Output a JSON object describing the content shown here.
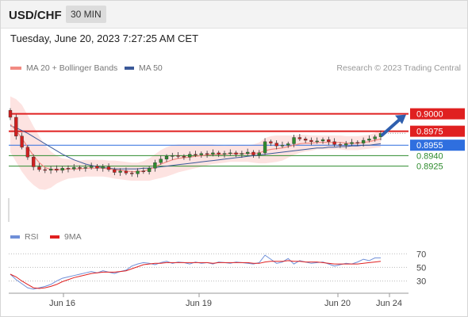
{
  "header": {
    "pair": "USD/CHF",
    "timeframe": "30 MIN"
  },
  "datetime": "Tuesday, June 20, 2023 7:27:25 AM CET",
  "legend": {
    "ma20": {
      "label": "MA 20 + Bollinger Bands",
      "color": "#f28b82"
    },
    "ma50": {
      "label": "MA 50",
      "color": "#3b5998"
    }
  },
  "copyright": "Research © 2023 Trading Central",
  "rsi_legend": {
    "rsi": {
      "label": "RSI",
      "color": "#6f8fd8"
    },
    "ma9": {
      "label": "9MA",
      "color": "#e02020"
    }
  },
  "x_labels": [
    "Jun 16",
    "Jun 19",
    "Jun 20",
    "Jun 24"
  ],
  "chart_data": [
    {
      "type": "line",
      "subtype": "candlestick",
      "ylim": [
        0.8845,
        0.9045
      ],
      "levels": [
        {
          "label": "0.9000",
          "value": 0.9,
          "kind": "resistance",
          "color": "#e02020"
        },
        {
          "label": "0.8975",
          "value": 0.8975,
          "kind": "resistance",
          "color": "#e02020"
        },
        {
          "label": "0.8955",
          "value": 0.8955,
          "kind": "pivot",
          "color": "#2f6fdf"
        },
        {
          "label": "0.8940",
          "value": 0.894,
          "kind": "support",
          "color": "#2e8b2e"
        },
        {
          "label": "0.8925",
          "value": 0.8925,
          "kind": "support",
          "color": "#2e8b2e"
        }
      ],
      "close_series": [
        0.8995,
        0.8968,
        0.8952,
        0.8938,
        0.8924,
        0.892,
        0.8919,
        0.8921,
        0.8919,
        0.8922,
        0.8921,
        0.8923,
        0.8922,
        0.8923,
        0.8925,
        0.8922,
        0.8924,
        0.892,
        0.8916,
        0.8918,
        0.8915,
        0.8914,
        0.8918,
        0.8917,
        0.8922,
        0.893,
        0.8935,
        0.8939,
        0.894,
        0.8939,
        0.8938,
        0.8942,
        0.8941,
        0.8943,
        0.8942,
        0.8944,
        0.8942,
        0.8943,
        0.8944,
        0.8942,
        0.8943,
        0.8945,
        0.8941,
        0.8944,
        0.896,
        0.8958,
        0.8954,
        0.8955,
        0.8957,
        0.8966,
        0.8964,
        0.8962,
        0.896,
        0.8961,
        0.8963,
        0.896,
        0.8956,
        0.8955,
        0.8957,
        0.8959,
        0.8958,
        0.8962,
        0.8964,
        0.8967,
        0.8972
      ],
      "ma20": [
        0.8985,
        0.8976,
        0.8965,
        0.8952,
        0.894,
        0.893,
        0.8923,
        0.892,
        0.892,
        0.892,
        0.8921,
        0.8921,
        0.8921,
        0.8922,
        0.8922,
        0.8922,
        0.8922,
        0.8921,
        0.892,
        0.8919,
        0.8918,
        0.8917,
        0.8917,
        0.8918,
        0.892,
        0.8924,
        0.8928,
        0.8931,
        0.8934,
        0.8936,
        0.8937,
        0.8938,
        0.8939,
        0.894,
        0.8941,
        0.8942,
        0.8942,
        0.8942,
        0.8943,
        0.8943,
        0.8943,
        0.8943,
        0.8943,
        0.8944,
        0.8947,
        0.8949,
        0.895,
        0.8951,
        0.8953,
        0.8955,
        0.8957,
        0.8958,
        0.8958,
        0.8959,
        0.8959,
        0.8959,
        0.8959,
        0.8959,
        0.8958,
        0.8958,
        0.8958,
        0.8959,
        0.896,
        0.8962,
        0.8964
      ],
      "ma50": [
        0.8983,
        0.898,
        0.8976,
        0.8972,
        0.8967,
        0.8962,
        0.8957,
        0.8952,
        0.8947,
        0.8942,
        0.8938,
        0.8934,
        0.8931,
        0.8928,
        0.8926,
        0.8924,
        0.8923,
        0.8922,
        0.8921,
        0.8921,
        0.8921,
        0.8921,
        0.8921,
        0.8922,
        0.8922,
        0.8923,
        0.8924,
        0.8925,
        0.8926,
        0.8927,
        0.8928,
        0.8929,
        0.893,
        0.8931,
        0.8932,
        0.8933,
        0.8934,
        0.8935,
        0.8936,
        0.8937,
        0.8938,
        0.8939,
        0.894,
        0.8941,
        0.8942,
        0.8943,
        0.8944,
        0.8945,
        0.8946,
        0.8947,
        0.8948,
        0.8949,
        0.895,
        0.8951,
        0.8951,
        0.8952,
        0.8952,
        0.8953,
        0.8953,
        0.8954,
        0.8954,
        0.8955,
        0.8955,
        0.8956,
        0.8957
      ],
      "bollinger_width": [
        0.004,
        0.0045,
        0.0048,
        0.0046,
        0.0042,
        0.0038,
        0.0032,
        0.0026,
        0.002,
        0.0016,
        0.0014,
        0.0013,
        0.0012,
        0.0012,
        0.0012,
        0.0012,
        0.0012,
        0.0012,
        0.0013,
        0.0013,
        0.0013,
        0.0013,
        0.0013,
        0.0014,
        0.0016,
        0.0018,
        0.002,
        0.0021,
        0.0021,
        0.002,
        0.0019,
        0.0018,
        0.0017,
        0.0016,
        0.0015,
        0.0014,
        0.0013,
        0.0012,
        0.0012,
        0.0012,
        0.0012,
        0.0012,
        0.0013,
        0.0015,
        0.0018,
        0.0019,
        0.0019,
        0.0018,
        0.0016,
        0.0014,
        0.0013,
        0.0012,
        0.0011,
        0.001,
        0.001,
        0.001,
        0.001,
        0.001,
        0.001,
        0.001,
        0.001,
        0.001,
        0.001,
        0.0011,
        0.0012
      ]
    },
    {
      "type": "line",
      "ylim": [
        12,
        82
      ],
      "y_ticks": [
        70,
        50,
        30
      ],
      "rsi": [
        40,
        32,
        26,
        20,
        18,
        20,
        22,
        25,
        30,
        34,
        36,
        38,
        40,
        42,
        44,
        42,
        45,
        43,
        41,
        44,
        46,
        52,
        55,
        57,
        56,
        54,
        57,
        59,
        56,
        58,
        57,
        55,
        58,
        56,
        57,
        55,
        58,
        57,
        56,
        58,
        57,
        56,
        55,
        57,
        68,
        62,
        56,
        58,
        63,
        55,
        60,
        58,
        56,
        57,
        58,
        55,
        52,
        54,
        56,
        55,
        58,
        62,
        60,
        64,
        64
      ],
      "ma9": [
        40,
        36,
        30,
        25,
        20,
        19,
        20,
        22,
        25,
        29,
        32,
        35,
        37,
        39,
        41,
        42,
        43,
        43,
        43,
        44,
        45,
        48,
        51,
        54,
        55,
        56,
        56,
        57,
        57,
        57,
        57,
        57,
        57,
        57,
        57,
        56,
        57,
        57,
        57,
        57,
        57,
        57,
        56,
        56,
        58,
        59,
        59,
        59,
        60,
        59,
        59,
        58,
        58,
        58,
        57,
        56,
        55,
        55,
        55,
        55,
        55,
        56,
        57,
        58,
        59
      ]
    }
  ]
}
